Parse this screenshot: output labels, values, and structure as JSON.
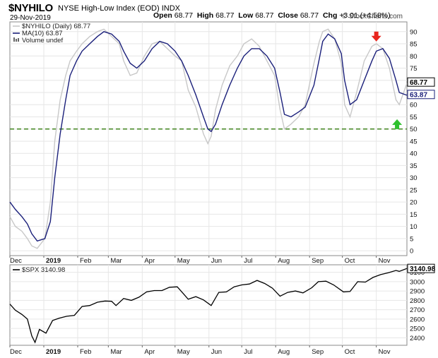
{
  "header": {
    "symbol": "$NYHILO",
    "description": "NYSE High-Low Index (EOD)",
    "exchange": "INDX",
    "date": "29-Nov-2019",
    "open_label": "Open",
    "open": "68.77",
    "high_label": "High",
    "high": "68.77",
    "low_label": "Low",
    "low": "68.77",
    "close_label": "Close",
    "close": "68.77",
    "chg_label": "Chg",
    "chg": "+3.01 (+4.58%)",
    "credit": "© StockCharts.com"
  },
  "legend": {
    "main": "$NYHILO (Daily) 68.77",
    "ma": "MA(10) 63.87",
    "volume": "Volume undef",
    "spx": "$SPX 3140.98"
  },
  "colors": {
    "nyhilo": "#c8c8c8",
    "ma": "#1a1f7a",
    "spx": "#000000",
    "threshold": "#4a8a2a",
    "arrow_down": "#e8251e",
    "arrow_up": "#2ec12e",
    "grid": "#e6e6e6"
  },
  "chart_data": [
    {
      "type": "line",
      "title": "$NYHILO",
      "x_axis": {
        "months": [
          "Dec",
          "2019",
          "Feb",
          "Mar",
          "Apr",
          "May",
          "Jun",
          "Jul",
          "Aug",
          "Sep",
          "Oct",
          "Nov"
        ],
        "range": [
          "2018-12-01",
          "2019-11-29"
        ]
      },
      "y_axis": {
        "ticks": [
          0,
          5,
          10,
          15,
          20,
          25,
          30,
          35,
          40,
          45,
          50,
          55,
          60,
          65,
          70,
          75,
          80,
          85,
          90
        ],
        "ylim": [
          -2,
          94
        ]
      },
      "threshold_line": 50,
      "last_value_tags": [
        "68.77",
        "63.87"
      ],
      "annotations": [
        {
          "type": "arrow-down",
          "x": "2019-11-01",
          "y": 88
        },
        {
          "type": "arrow-up",
          "x": "2019-11-20",
          "y": 52
        }
      ],
      "series": [
        {
          "name": "$NYHILO (Daily)",
          "x": [
            "2018-12-01",
            "2018-12-06",
            "2018-12-12",
            "2018-12-17",
            "2018-12-21",
            "2018-12-26",
            "2019-01-02",
            "2019-01-07",
            "2019-01-11",
            "2019-01-16",
            "2019-01-21",
            "2019-01-25",
            "2019-01-31",
            "2019-02-05",
            "2019-02-12",
            "2019-02-19",
            "2019-02-25",
            "2019-03-04",
            "2019-03-11",
            "2019-03-15",
            "2019-03-21",
            "2019-03-27",
            "2019-04-03",
            "2019-04-10",
            "2019-04-17",
            "2019-04-24",
            "2019-05-01",
            "2019-05-07",
            "2019-05-13",
            "2019-05-20",
            "2019-05-27",
            "2019-05-31",
            "2019-06-03",
            "2019-06-07",
            "2019-06-13",
            "2019-06-20",
            "2019-06-27",
            "2019-07-03",
            "2019-07-10",
            "2019-07-17",
            "2019-07-24",
            "2019-07-31",
            "2019-08-05",
            "2019-08-09",
            "2019-08-15",
            "2019-08-22",
            "2019-08-28",
            "2019-09-05",
            "2019-09-10",
            "2019-09-13",
            "2019-09-18",
            "2019-09-24",
            "2019-09-30",
            "2019-10-03",
            "2019-10-08",
            "2019-10-14",
            "2019-10-21",
            "2019-10-28",
            "2019-11-01",
            "2019-11-07",
            "2019-11-13",
            "2019-11-19",
            "2019-11-22",
            "2019-11-29"
          ],
          "values": [
            14,
            10,
            8,
            5,
            2,
            1,
            5,
            20,
            45,
            62,
            72,
            78,
            82,
            85,
            88,
            90,
            91,
            88,
            85,
            78,
            72,
            73,
            80,
            85,
            86,
            83,
            80,
            78,
            66,
            59,
            48,
            44,
            47,
            58,
            68,
            76,
            80,
            85,
            87,
            84,
            78,
            72,
            58,
            50,
            52,
            55,
            60,
            77,
            86,
            90,
            91,
            87,
            77,
            60,
            55,
            65,
            78,
            84,
            85,
            83,
            75,
            62,
            60,
            68.77
          ]
        },
        {
          "name": "MA(10)",
          "x": [
            "2018-12-01",
            "2018-12-06",
            "2018-12-12",
            "2018-12-17",
            "2018-12-21",
            "2018-12-26",
            "2019-01-02",
            "2019-01-07",
            "2019-01-11",
            "2019-01-16",
            "2019-01-21",
            "2019-01-25",
            "2019-01-31",
            "2019-02-05",
            "2019-02-12",
            "2019-02-19",
            "2019-02-25",
            "2019-03-04",
            "2019-03-11",
            "2019-03-15",
            "2019-03-21",
            "2019-03-27",
            "2019-04-03",
            "2019-04-10",
            "2019-04-17",
            "2019-04-24",
            "2019-05-01",
            "2019-05-07",
            "2019-05-13",
            "2019-05-20",
            "2019-05-27",
            "2019-05-31",
            "2019-06-03",
            "2019-06-07",
            "2019-06-13",
            "2019-06-20",
            "2019-06-27",
            "2019-07-03",
            "2019-07-10",
            "2019-07-17",
            "2019-07-24",
            "2019-07-31",
            "2019-08-05",
            "2019-08-09",
            "2019-08-15",
            "2019-08-22",
            "2019-08-28",
            "2019-09-05",
            "2019-09-10",
            "2019-09-13",
            "2019-09-18",
            "2019-09-24",
            "2019-09-30",
            "2019-10-03",
            "2019-10-08",
            "2019-10-14",
            "2019-10-21",
            "2019-10-28",
            "2019-11-01",
            "2019-11-07",
            "2019-11-13",
            "2019-11-19",
            "2019-11-22",
            "2019-11-29"
          ],
          "values": [
            20,
            17,
            14,
            11,
            7,
            4,
            5,
            12,
            30,
            48,
            62,
            72,
            78,
            82,
            85,
            88,
            90,
            89,
            86,
            82,
            77,
            75,
            78,
            83,
            86,
            85,
            82,
            78,
            72,
            64,
            55,
            50,
            49,
            52,
            60,
            68,
            75,
            80,
            83,
            83,
            80,
            75,
            65,
            56,
            55,
            57,
            59,
            68,
            79,
            86,
            89,
            87,
            81,
            70,
            60,
            62,
            70,
            78,
            82,
            83,
            79,
            70,
            65,
            63.87
          ]
        }
      ]
    },
    {
      "type": "line",
      "title": "$SPX",
      "y_axis": {
        "ticks": [
          2400,
          2500,
          2600,
          2700,
          2800,
          2900,
          3000,
          3100
        ],
        "ylim": [
          2320,
          3180
        ]
      },
      "last_value_tags": [
        "3140.98"
      ],
      "series": [
        {
          "name": "$SPX",
          "x": [
            "2018-12-01",
            "2018-12-06",
            "2018-12-12",
            "2018-12-17",
            "2018-12-21",
            "2018-12-24",
            "2018-12-28",
            "2019-01-03",
            "2019-01-09",
            "2019-01-15",
            "2019-01-22",
            "2019-01-29",
            "2019-02-05",
            "2019-02-12",
            "2019-02-19",
            "2019-02-26",
            "2019-03-04",
            "2019-03-08",
            "2019-03-15",
            "2019-03-22",
            "2019-03-29",
            "2019-04-05",
            "2019-04-12",
            "2019-04-19",
            "2019-04-26",
            "2019-05-03",
            "2019-05-08",
            "2019-05-13",
            "2019-05-20",
            "2019-05-27",
            "2019-06-03",
            "2019-06-10",
            "2019-06-17",
            "2019-06-24",
            "2019-07-01",
            "2019-07-08",
            "2019-07-15",
            "2019-07-22",
            "2019-07-29",
            "2019-08-05",
            "2019-08-12",
            "2019-08-19",
            "2019-08-26",
            "2019-09-03",
            "2019-09-09",
            "2019-09-16",
            "2019-09-23",
            "2019-10-02",
            "2019-10-08",
            "2019-10-15",
            "2019-10-22",
            "2019-10-29",
            "2019-11-05",
            "2019-11-12",
            "2019-11-19",
            "2019-11-22",
            "2019-11-29"
          ],
          "values": [
            2760,
            2695,
            2650,
            2600,
            2420,
            2351,
            2490,
            2450,
            2585,
            2610,
            2630,
            2640,
            2735,
            2745,
            2780,
            2793,
            2790,
            2745,
            2820,
            2800,
            2834,
            2890,
            2905,
            2905,
            2940,
            2945,
            2880,
            2812,
            2840,
            2805,
            2745,
            2885,
            2890,
            2945,
            2965,
            2975,
            3013,
            2980,
            2930,
            2845,
            2885,
            2900,
            2880,
            2935,
            3000,
            3005,
            2965,
            2890,
            2895,
            3000,
            2995,
            3045,
            3075,
            3095,
            3120,
            3110,
            3140.98
          ]
        }
      ]
    }
  ]
}
